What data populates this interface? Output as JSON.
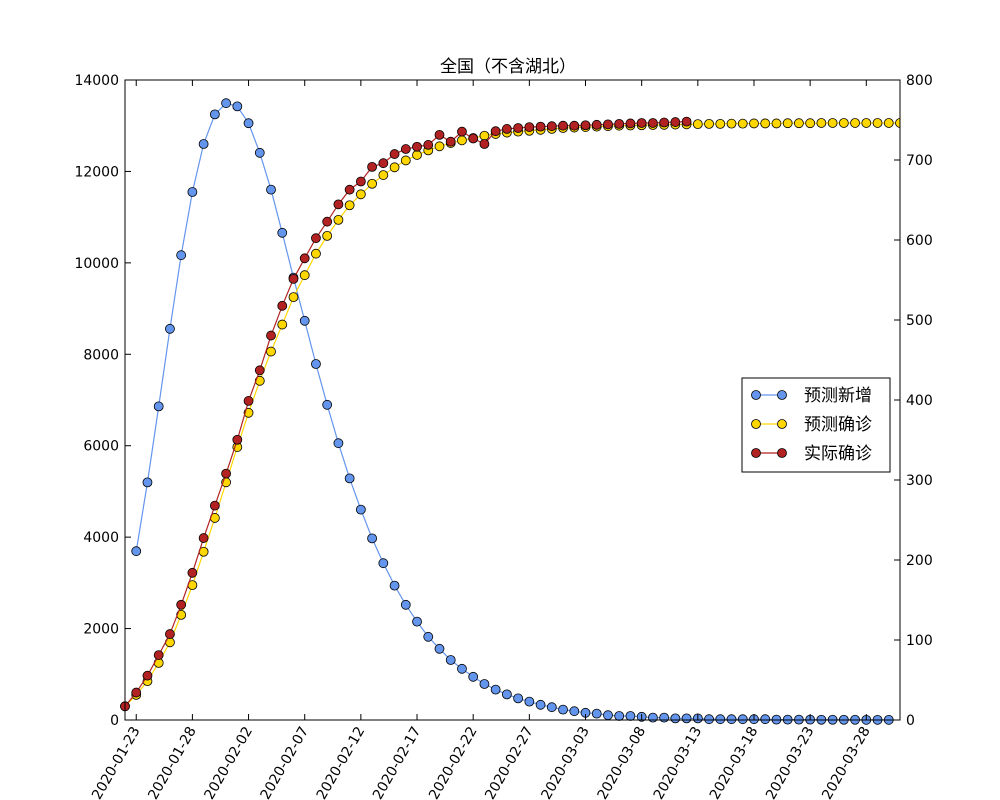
{
  "chart_data": {
    "type": "line",
    "title": "全国（不含湖北）",
    "xlabel": "",
    "ylabel": "",
    "x_tick_labels": [
      "2020-01-23",
      "2020-01-28",
      "2020-02-02",
      "2020-02-07",
      "2020-02-12",
      "2020-02-17",
      "2020-02-22",
      "2020-02-27",
      "2020-03-03",
      "2020-03-08",
      "2020-03-13",
      "2020-03-18",
      "2020-03-23",
      "2020-03-28"
    ],
    "x_tick_days": [
      1,
      6,
      11,
      16,
      21,
      26,
      31,
      36,
      41,
      46,
      51,
      56,
      61,
      66
    ],
    "x_range_days": [
      0,
      69
    ],
    "ylim_left": [
      0,
      14000
    ],
    "ylim_right": [
      0,
      800
    ],
    "yticks_left": [
      0,
      2000,
      4000,
      6000,
      8000,
      10000,
      12000,
      14000
    ],
    "yticks_right": [
      0,
      100,
      200,
      300,
      400,
      500,
      600,
      700,
      800
    ],
    "grid": false,
    "legend_position": "center-right",
    "legend": [
      "预测新增",
      "预测确诊",
      "实际确诊"
    ],
    "series": [
      {
        "name": "预测新增",
        "axis": "right",
        "color": "#6495ED",
        "start_day": 1,
        "values": [
          211,
          297,
          392,
          489,
          581,
          660,
          720,
          757,
          771,
          767,
          746,
          709,
          663,
          609,
          553,
          499,
          445,
          394,
          346,
          302,
          263,
          227,
          196,
          168,
          144,
          123,
          104,
          89,
          75,
          64,
          54,
          45,
          38,
          32,
          27,
          23,
          19,
          16,
          13,
          11,
          9,
          8,
          6,
          5,
          5,
          4,
          3,
          3,
          2,
          2,
          2,
          1,
          1,
          1,
          1,
          1,
          1,
          0.5,
          0.5,
          0.5,
          0.5,
          0.3,
          0.3,
          0.3,
          0.3,
          0.2,
          0.2,
          0.2
        ]
      },
      {
        "name": "预测确诊",
        "axis": "left",
        "color": "#FFD700",
        "start_day": 0,
        "values": [
          300,
          550,
          850,
          1250,
          1700,
          2300,
          2950,
          3680,
          4420,
          5200,
          5970,
          6720,
          7420,
          8060,
          8650,
          9250,
          9730,
          10200,
          10590,
          10940,
          11260,
          11500,
          11730,
          11920,
          12090,
          12240,
          12360,
          12460,
          12550,
          12620,
          12680,
          12730,
          12780,
          12820,
          12850,
          12870,
          12890,
          12910,
          12930,
          12950,
          12960,
          12970,
          12980,
          12990,
          13000,
          13005,
          13010,
          13015,
          13020,
          13025,
          13030,
          13035,
          13040,
          13040,
          13045,
          13045,
          13050,
          13050,
          13050,
          13055,
          13055,
          13055,
          13060,
          13060,
          13060,
          13060,
          13060,
          13060,
          13060,
          13060
        ]
      },
      {
        "name": "实际确诊",
        "axis": "left",
        "color": "#B22222",
        "start_day": 0,
        "values": [
          300,
          600,
          970,
          1420,
          1880,
          2520,
          3220,
          3980,
          4690,
          5390,
          6130,
          6980,
          7650,
          8410,
          9060,
          9650,
          10100,
          10540,
          10900,
          11280,
          11600,
          11780,
          12100,
          12180,
          12380,
          12490,
          12540,
          12580,
          12800,
          12650,
          12870,
          12720,
          12600,
          12880,
          12930,
          12950,
          12970,
          12980,
          12990,
          13000,
          13000,
          13010,
          13020,
          13030,
          13040,
          13050,
          13060,
          13060,
          13070,
          13080,
          13090
        ]
      }
    ]
  }
}
